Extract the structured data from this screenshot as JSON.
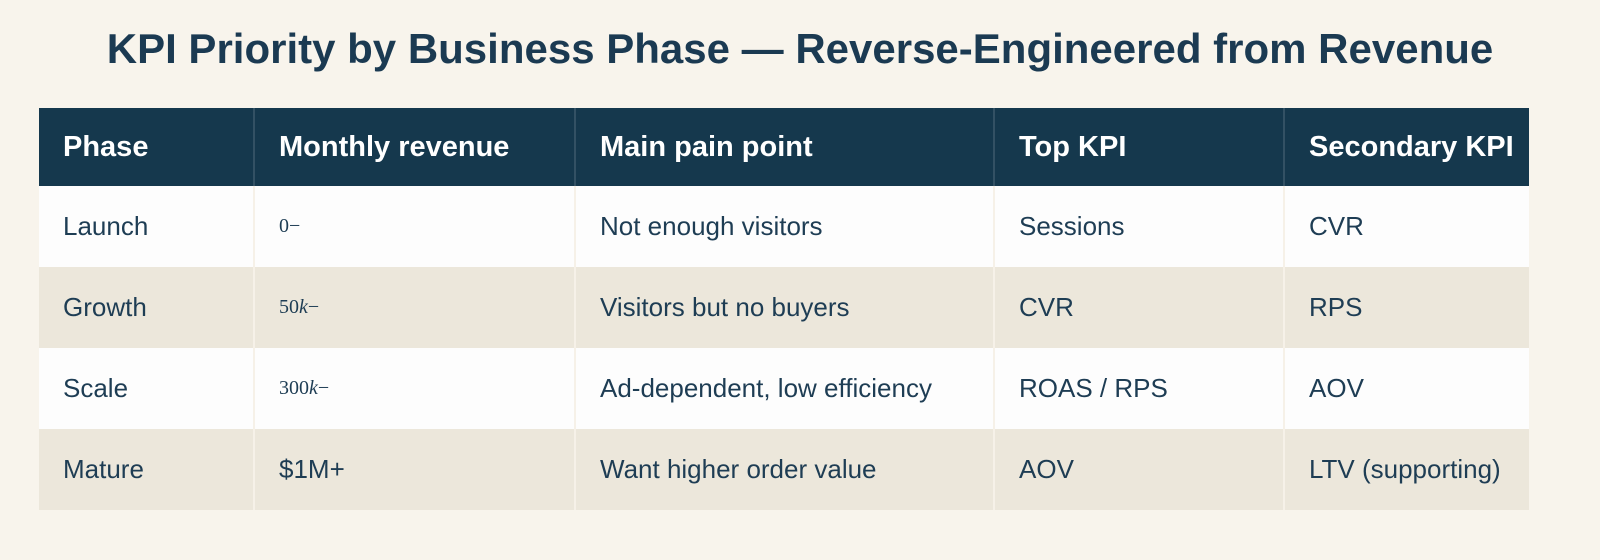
{
  "colors": {
    "page_bg": "#f8f4ec",
    "header_bg": "#15384d",
    "header_text": "#ffffff",
    "row_white": "#fdfdfd",
    "row_beige": "#ece7db",
    "body_text": "#1e3d54",
    "title_text": "#1b3a52",
    "divider": "#f6f1e8"
  },
  "chart_data": {
    "type": "table",
    "title": "KPI Priority by Business Phase — Reverse-Engineered from Revenue",
    "columns": [
      "Phase",
      "Monthly revenue",
      "Main pain point",
      "Top KPI",
      "Secondary KPI"
    ],
    "rows": [
      {
        "phase": "Launch",
        "revenue": "0−",
        "revenue_format": "math",
        "pain_point": "Not enough visitors",
        "top_kpi": "Sessions",
        "secondary_kpi": "CVR"
      },
      {
        "phase": "Growth",
        "revenue": "50k−",
        "revenue_format": "math",
        "pain_point": "Visitors but no buyers",
        "top_kpi": "CVR",
        "secondary_kpi": "RPS"
      },
      {
        "phase": "Scale",
        "revenue": "300k−",
        "revenue_format": "math",
        "pain_point": "Ad-dependent, low efficiency",
        "top_kpi": "ROAS / RPS",
        "secondary_kpi": "AOV"
      },
      {
        "phase": "Mature",
        "revenue": "$1M+",
        "revenue_format": "plain",
        "pain_point": "Want higher order value",
        "top_kpi": "AOV",
        "secondary_kpi": "LTV (supporting)"
      }
    ]
  }
}
